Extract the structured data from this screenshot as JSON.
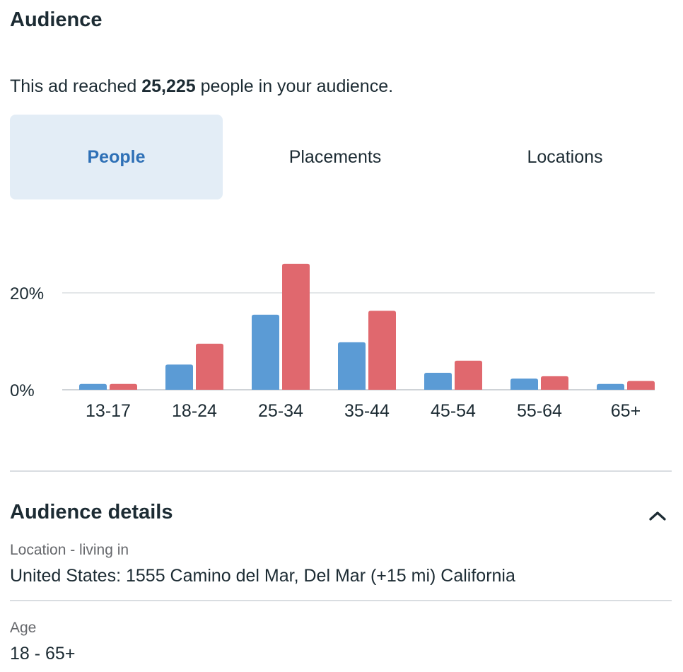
{
  "audience": {
    "title": "Audience",
    "reach_prefix": "This ad reached ",
    "reach_count": "25,225",
    "reach_suffix": " people in your audience."
  },
  "tabs": [
    {
      "label": "People",
      "active": true
    },
    {
      "label": "Placements",
      "active": false
    },
    {
      "label": "Locations",
      "active": false
    }
  ],
  "colors": {
    "series_a": "#5b9bd5",
    "series_b": "#e0686e",
    "active_tab_bg": "#e3edf6",
    "active_tab_text": "#2e70b6"
  },
  "chart_data": {
    "type": "bar",
    "categories": [
      "13-17",
      "18-24",
      "25-34",
      "35-44",
      "45-54",
      "55-64",
      "65+"
    ],
    "series": [
      {
        "color": "#5b9bd5",
        "values": [
          1.2,
          5.2,
          15.5,
          9.8,
          3.5,
          2.3,
          1.2
        ]
      },
      {
        "color": "#e0686e",
        "values": [
          1.2,
          9.5,
          26.0,
          16.3,
          6.0,
          2.8,
          1.8
        ]
      }
    ],
    "y_ticks": [
      "0%",
      "20%"
    ],
    "y_tick_values": [
      0,
      20
    ],
    "ylim": [
      0,
      30
    ],
    "grid": true,
    "legend": "none"
  },
  "details": {
    "title": "Audience details",
    "collapse_icon": "chevron-up-icon",
    "location_label": "Location - living in",
    "location_value": "United States: 1555 Camino del Mar, Del Mar (+15 mi) California",
    "age_label": "Age",
    "age_value": "18 - 65+"
  }
}
